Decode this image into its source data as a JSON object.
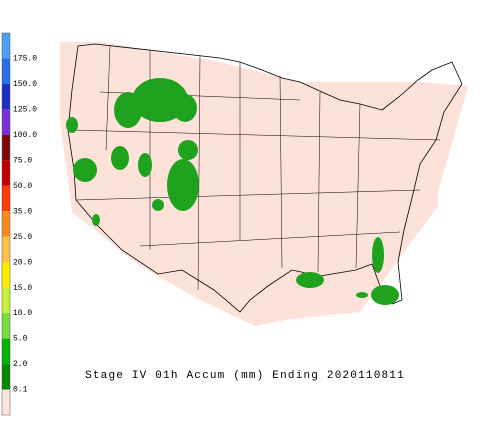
{
  "title": "Stage IV 01h Accum (mm) Ending 2020110811",
  "legend": {
    "labels": [
      "175.0",
      "150.0",
      "125.0",
      "100.0",
      "75.0",
      "50.0",
      "35.0",
      "25.0",
      "20.0",
      "15.0",
      "10.0",
      "5.0",
      "2.0",
      "0.1"
    ],
    "colors": [
      "#4aa3f2",
      "#2b6ee8",
      "#1d2fc4",
      "#7a2fd8",
      "#7a0a0a",
      "#c00000",
      "#ff3a00",
      "#ff8a1c",
      "#ffc04a",
      "#ffee00",
      "#c6f03c",
      "#78dc3c",
      "#00b400",
      "#008a00",
      "#fde4dc"
    ]
  }
}
